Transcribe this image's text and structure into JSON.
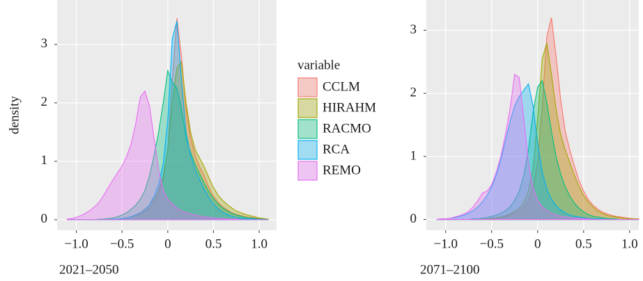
{
  "chart_data": [
    {
      "type": "area",
      "caption": "2021–2050",
      "ylabel": "density",
      "legend_title": "variable",
      "grid": true,
      "xlim": [
        -1.21,
        1.19
      ],
      "ylim": [
        -0.18,
        3.76
      ],
      "xticks": [
        {
          "value": -1,
          "label": "−1.0"
        },
        {
          "value": -0.5,
          "label": "−0.5"
        },
        0,
        0.5,
        {
          "value": 1,
          "label": "1.0"
        }
      ],
      "yticks": [
        0,
        1,
        2,
        3
      ],
      "x": [
        -1.1,
        -1.05,
        -1,
        -0.95,
        -0.9,
        -0.85,
        -0.8,
        -0.75,
        -0.7,
        -0.65,
        -0.6,
        -0.55,
        -0.5,
        -0.45,
        -0.4,
        -0.35,
        -0.3,
        -0.25,
        -0.2,
        -0.15,
        -0.1,
        -0.05,
        0,
        0.05,
        0.1,
        0.15,
        0.2,
        0.25,
        0.3,
        0.35,
        0.4,
        0.45,
        0.5,
        0.55,
        0.6,
        0.65,
        0.7,
        0.75,
        0.8,
        0.85,
        0.9,
        0.95,
        1,
        1.05,
        1.1
      ],
      "series": [
        {
          "name": "CCLM",
          "color": "#F8766D",
          "values": [
            0,
            0,
            0,
            0,
            0,
            0,
            0,
            0,
            0,
            0,
            0.01,
            0.01,
            0.02,
            0.03,
            0.05,
            0.07,
            0.1,
            0.14,
            0.2,
            0.3,
            0.45,
            0.7,
            1.2,
            2.4,
            3.45,
            2.8,
            1.9,
            1.4,
            1.1,
            0.9,
            0.75,
            0.55,
            0.4,
            0.3,
            0.22,
            0.17,
            0.12,
            0.09,
            0.07,
            0.05,
            0.04,
            0.03,
            0.02,
            0.01,
            0
          ]
        },
        {
          "name": "HIRAHM",
          "color": "#A3A500",
          "values": [
            0,
            0,
            0,
            0,
            0,
            0,
            0,
            0,
            0,
            0,
            0.01,
            0.01,
            0.02,
            0.03,
            0.05,
            0.08,
            0.12,
            0.18,
            0.25,
            0.35,
            0.5,
            0.75,
            1.2,
            2.0,
            2.6,
            2.7,
            2.0,
            1.5,
            1.2,
            1.05,
            0.9,
            0.72,
            0.55,
            0.42,
            0.33,
            0.26,
            0.2,
            0.15,
            0.12,
            0.09,
            0.07,
            0.05,
            0.03,
            0.02,
            0.01
          ]
        },
        {
          "name": "RACMO",
          "color": "#00BF7D",
          "values": [
            0,
            0,
            0,
            0,
            0,
            0,
            0,
            0.01,
            0.01,
            0.02,
            0.03,
            0.05,
            0.08,
            0.12,
            0.18,
            0.25,
            0.35,
            0.5,
            0.75,
            1.1,
            1.5,
            2.0,
            2.55,
            2.35,
            2.25,
            1.9,
            1.4,
            1.15,
            0.95,
            0.78,
            0.62,
            0.48,
            0.36,
            0.27,
            0.2,
            0.15,
            0.11,
            0.08,
            0.06,
            0.04,
            0.03,
            0.02,
            0.01,
            0.01,
            0
          ]
        },
        {
          "name": "RCA",
          "color": "#00B0F6",
          "values": [
            0,
            0,
            0,
            0,
            0,
            0,
            0,
            0,
            0,
            0,
            0.01,
            0.01,
            0.02,
            0.03,
            0.05,
            0.08,
            0.12,
            0.17,
            0.25,
            0.4,
            0.6,
            0.95,
            1.7,
            3.1,
            3.4,
            2.4,
            1.5,
            1.1,
            0.85,
            0.68,
            0.52,
            0.38,
            0.27,
            0.19,
            0.13,
            0.09,
            0.06,
            0.04,
            0.03,
            0.02,
            0.01,
            0.01,
            0,
            0,
            0
          ]
        },
        {
          "name": "REMO",
          "color": "#E76BF3",
          "values": [
            0.01,
            0.02,
            0.04,
            0.07,
            0.11,
            0.16,
            0.22,
            0.3,
            0.42,
            0.55,
            0.68,
            0.8,
            0.92,
            1.08,
            1.3,
            1.65,
            2.1,
            2.2,
            1.95,
            1.4,
            0.85,
            0.5,
            0.35,
            0.27,
            0.2,
            0.15,
            0.12,
            0.1,
            0.08,
            0.06,
            0.05,
            0.04,
            0.03,
            0.02,
            0.02,
            0.01,
            0.01,
            0.01,
            0,
            0,
            0,
            0,
            0,
            0,
            0
          ]
        }
      ]
    },
    {
      "type": "area",
      "caption": "2071–2100",
      "grid": true,
      "xlim": [
        -1.21,
        1.1
      ],
      "ylim": [
        -0.17,
        3.48
      ],
      "xticks": [
        {
          "value": -1,
          "label": "−1.0"
        },
        {
          "value": -0.5,
          "label": "−0.5"
        },
        0,
        0.5,
        {
          "value": 1,
          "label": "1.0"
        }
      ],
      "yticks": [
        0,
        1,
        2,
        3
      ],
      "x": [
        -1.1,
        -1.05,
        -1,
        -0.95,
        -0.9,
        -0.85,
        -0.8,
        -0.75,
        -0.7,
        -0.65,
        -0.6,
        -0.55,
        -0.5,
        -0.45,
        -0.4,
        -0.35,
        -0.3,
        -0.25,
        -0.2,
        -0.15,
        -0.1,
        -0.05,
        0,
        0.05,
        0.1,
        0.15,
        0.2,
        0.25,
        0.3,
        0.35,
        0.4,
        0.45,
        0.5,
        0.55,
        0.6,
        0.65,
        0.7,
        0.75,
        0.8,
        0.85,
        0.9,
        0.95,
        1,
        1.05,
        1.1
      ],
      "series": [
        {
          "color": "#F8766D",
          "values": [
            0,
            0,
            0,
            0,
            0,
            0,
            0,
            0,
            0,
            0,
            0,
            0.01,
            0.01,
            0.02,
            0.03,
            0.05,
            0.07,
            0.1,
            0.14,
            0.2,
            0.3,
            0.5,
            0.9,
            1.8,
            2.9,
            3.2,
            2.6,
            1.9,
            1.4,
            1.1,
            0.85,
            0.62,
            0.45,
            0.32,
            0.23,
            0.17,
            0.12,
            0.09,
            0.07,
            0.05,
            0.04,
            0.03,
            0.02,
            0.01,
            0.01
          ]
        },
        {
          "color": "#A3A500",
          "values": [
            0,
            0,
            0,
            0,
            0,
            0,
            0,
            0,
            0,
            0,
            0.01,
            0.01,
            0.02,
            0.03,
            0.04,
            0.06,
            0.09,
            0.13,
            0.18,
            0.27,
            0.45,
            0.8,
            1.6,
            2.55,
            2.8,
            2.3,
            1.75,
            1.35,
            1.1,
            0.9,
            0.7,
            0.52,
            0.38,
            0.28,
            0.2,
            0.14,
            0.1,
            0.07,
            0.05,
            0.04,
            0.03,
            0.02,
            0.01,
            0.01,
            0
          ]
        },
        {
          "color": "#00BF7D",
          "values": [
            0,
            0,
            0,
            0,
            0,
            0,
            0,
            0,
            0.01,
            0.01,
            0.02,
            0.03,
            0.05,
            0.07,
            0.1,
            0.14,
            0.2,
            0.3,
            0.45,
            0.7,
            1.1,
            1.7,
            2.1,
            2.2,
            1.85,
            1.4,
            1.0,
            0.72,
            0.52,
            0.37,
            0.26,
            0.18,
            0.12,
            0.08,
            0.05,
            0.04,
            0.03,
            0.02,
            0.01,
            0.01,
            0,
            0,
            0,
            0,
            0
          ]
        },
        {
          "color": "#00B0F6",
          "values": [
            0,
            0.01,
            0.01,
            0.02,
            0.03,
            0.05,
            0.07,
            0.1,
            0.14,
            0.2,
            0.28,
            0.38,
            0.52,
            0.7,
            0.95,
            1.25,
            1.55,
            1.8,
            1.95,
            2.05,
            2.15,
            1.8,
            1.2,
            0.75,
            0.48,
            0.32,
            0.22,
            0.15,
            0.1,
            0.07,
            0.05,
            0.04,
            0.03,
            0.02,
            0.01,
            0.01,
            0.01,
            0,
            0,
            0,
            0,
            0,
            0,
            0,
            0
          ]
        },
        {
          "color": "#E76BF3",
          "values": [
            0,
            0.01,
            0.01,
            0.02,
            0.04,
            0.06,
            0.09,
            0.13,
            0.2,
            0.3,
            0.42,
            0.45,
            0.55,
            0.75,
            1.0,
            1.35,
            1.75,
            2.3,
            2.25,
            1.6,
            0.9,
            0.5,
            0.3,
            0.2,
            0.14,
            0.1,
            0.07,
            0.05,
            0.04,
            0.03,
            0.02,
            0.02,
            0.01,
            0.01,
            0,
            0,
            0,
            0,
            0,
            0,
            0,
            0,
            0,
            0,
            0
          ]
        }
      ]
    }
  ]
}
